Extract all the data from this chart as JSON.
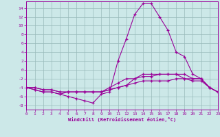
{
  "xlabel": "Windchill (Refroidissement éolien,°C)",
  "xlim": [
    0,
    23
  ],
  "ylim": [
    -9,
    15.5
  ],
  "xticks": [
    0,
    1,
    2,
    3,
    4,
    5,
    6,
    7,
    8,
    9,
    10,
    11,
    12,
    13,
    14,
    15,
    16,
    17,
    18,
    19,
    20,
    21,
    22,
    23
  ],
  "yticks": [
    -8,
    -6,
    -4,
    -2,
    0,
    2,
    4,
    6,
    8,
    10,
    12,
    14
  ],
  "background_color": "#cce8e8",
  "grid_color": "#99bbbb",
  "line_color": "#990099",
  "line1_x": [
    0,
    1,
    2,
    3,
    4,
    5,
    6,
    7,
    8,
    9,
    10,
    11,
    12,
    13,
    14,
    15,
    16,
    17,
    18,
    19,
    20,
    21,
    22,
    23
  ],
  "line1_y": [
    -4,
    -4.5,
    -5,
    -5,
    -5.5,
    -6,
    -6.5,
    -7,
    -7.5,
    -5.5,
    -5,
    2,
    7,
    12.5,
    15,
    15,
    12,
    9,
    4,
    3,
    -1,
    -2,
    -4,
    -5
  ],
  "line2_x": [
    0,
    1,
    2,
    3,
    4,
    5,
    6,
    7,
    8,
    9,
    10,
    11,
    12,
    13,
    14,
    15,
    16,
    17,
    18,
    19,
    20,
    21,
    22,
    23
  ],
  "line2_y": [
    -4,
    -4.5,
    -5,
    -5,
    -5.5,
    -5,
    -5,
    -5,
    -5,
    -5,
    -4,
    -3,
    -2,
    -2,
    -1,
    -1,
    -1,
    -1,
    -1,
    -1,
    -2,
    -2,
    -4,
    -5
  ],
  "line3_x": [
    0,
    1,
    2,
    3,
    4,
    5,
    6,
    7,
    8,
    9,
    10,
    11,
    12,
    13,
    14,
    15,
    16,
    17,
    18,
    19,
    20,
    21,
    22,
    23
  ],
  "line3_y": [
    -4,
    -4,
    -4.5,
    -4.5,
    -5,
    -5,
    -5,
    -5,
    -5,
    -5,
    -4.5,
    -4,
    -3.5,
    -3,
    -2.5,
    -2.5,
    -2.5,
    -2.5,
    -2,
    -2,
    -2,
    -2,
    -4,
    -5
  ],
  "line4_x": [
    0,
    1,
    2,
    3,
    4,
    5,
    6,
    7,
    8,
    9,
    10,
    11,
    12,
    13,
    14,
    15,
    16,
    17,
    18,
    19,
    20,
    21,
    22,
    23
  ],
  "line4_y": [
    -4,
    -4,
    -4.5,
    -4.5,
    -5,
    -5,
    -5,
    -5,
    -5,
    -5,
    -4.5,
    -4,
    -3.5,
    -2,
    -1.5,
    -1.5,
    -1,
    -1,
    -1,
    -2,
    -2.5,
    -2.5,
    -4,
    -5
  ]
}
